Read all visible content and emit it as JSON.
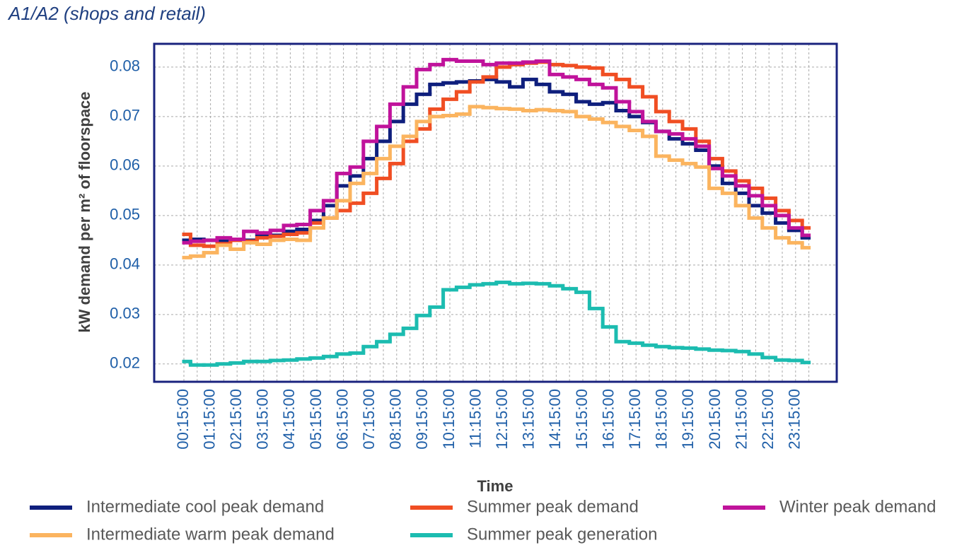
{
  "chart_data": {
    "type": "step-line",
    "title": "A1/A2 (shops and retail)",
    "x_label": "Time",
    "y_label": "kW demand per m² of floorspace",
    "categories": [
      "00:15:00",
      null,
      "01:15:00",
      null,
      "02:15:00",
      null,
      "03:15:00",
      null,
      "04:15:00",
      null,
      "05:15:00",
      null,
      "06:15:00",
      null,
      "07:15:00",
      null,
      "08:15:00",
      null,
      "09:15:00",
      null,
      "10:15:00",
      null,
      "11:15:00",
      null,
      "12:15:00",
      null,
      "13:15:00",
      null,
      "14:15:00",
      null,
      "15:15:00",
      null,
      "16:15:00",
      null,
      "17:15:00",
      null,
      "18:15:00",
      null,
      "19:15:00",
      null,
      "20:15:00",
      null,
      "21:15:00",
      null,
      "22:15:00",
      null,
      "23:15:00",
      null
    ],
    "ylim": [
      0.0164,
      0.0847
    ],
    "yticks": [
      0.02,
      0.03,
      0.04,
      0.05,
      0.06,
      0.07,
      0.08
    ],
    "grid": true,
    "legend": "bottom",
    "series": [
      {
        "name": "Intermediate cool peak demand",
        "color": "#0f1f7d",
        "values": [
          0.045,
          0.0452,
          0.045,
          0.0448,
          0.0452,
          0.045,
          0.0462,
          0.046,
          0.0468,
          0.0472,
          0.049,
          0.052,
          0.056,
          0.058,
          0.0615,
          0.065,
          0.069,
          0.0725,
          0.0745,
          0.0765,
          0.0768,
          0.077,
          0.0772,
          0.0775,
          0.077,
          0.076,
          0.0775,
          0.0765,
          0.075,
          0.0745,
          0.073,
          0.0725,
          0.0728,
          0.0712,
          0.07,
          0.0688,
          0.067,
          0.0655,
          0.0645,
          0.0632,
          0.06,
          0.0565,
          0.0545,
          0.052,
          0.0505,
          0.0485,
          0.047,
          0.0455
        ]
      },
      {
        "name": "Summer peak demand",
        "color": "#f04e23",
        "values": [
          0.0462,
          0.044,
          0.0438,
          0.0443,
          0.045,
          0.0448,
          0.0455,
          0.0458,
          0.0462,
          0.0465,
          0.0485,
          0.0495,
          0.051,
          0.0525,
          0.0545,
          0.0575,
          0.0605,
          0.065,
          0.0675,
          0.0715,
          0.0735,
          0.075,
          0.077,
          0.078,
          0.08,
          0.0805,
          0.0808,
          0.081,
          0.0805,
          0.0803,
          0.08,
          0.0798,
          0.0785,
          0.0775,
          0.076,
          0.074,
          0.071,
          0.069,
          0.0675,
          0.065,
          0.0615,
          0.059,
          0.057,
          0.0555,
          0.0535,
          0.051,
          0.049,
          0.0475
        ]
      },
      {
        "name": "Winter peak demand",
        "color": "#c0139b",
        "values": [
          0.0445,
          0.0448,
          0.045,
          0.0455,
          0.0452,
          0.0468,
          0.0465,
          0.047,
          0.048,
          0.0482,
          0.051,
          0.053,
          0.0585,
          0.0598,
          0.065,
          0.068,
          0.0725,
          0.076,
          0.0795,
          0.0805,
          0.0815,
          0.0812,
          0.0812,
          0.0805,
          0.0808,
          0.0808,
          0.081,
          0.0812,
          0.0785,
          0.078,
          0.0775,
          0.0765,
          0.0758,
          0.073,
          0.071,
          0.069,
          0.067,
          0.0665,
          0.0655,
          0.064,
          0.0595,
          0.058,
          0.056,
          0.054,
          0.052,
          0.05,
          0.0475,
          0.046
        ]
      },
      {
        "name": "Intermediate warm peak demand",
        "color": "#fbb45f",
        "values": [
          0.0415,
          0.0418,
          0.0425,
          0.044,
          0.0432,
          0.0445,
          0.0442,
          0.045,
          0.0452,
          0.045,
          0.0475,
          0.0495,
          0.053,
          0.0565,
          0.0585,
          0.0615,
          0.064,
          0.066,
          0.069,
          0.07,
          0.0702,
          0.0705,
          0.072,
          0.0718,
          0.0716,
          0.0715,
          0.0712,
          0.0714,
          0.0712,
          0.071,
          0.07,
          0.0695,
          0.0688,
          0.068,
          0.0672,
          0.066,
          0.062,
          0.0612,
          0.0605,
          0.0598,
          0.0555,
          0.0545,
          0.052,
          0.0495,
          0.0475,
          0.0455,
          0.0445,
          0.0435
        ]
      },
      {
        "name": "Summer peak generation",
        "color": "#1cbcb0",
        "values": [
          0.0205,
          0.0198,
          0.0198,
          0.02,
          0.0202,
          0.0205,
          0.0205,
          0.0207,
          0.0208,
          0.021,
          0.0212,
          0.0215,
          0.022,
          0.0222,
          0.0235,
          0.0245,
          0.026,
          0.0272,
          0.0298,
          0.0315,
          0.035,
          0.0355,
          0.036,
          0.0362,
          0.0365,
          0.0362,
          0.0363,
          0.0362,
          0.0358,
          0.0352,
          0.0345,
          0.0312,
          0.0275,
          0.0245,
          0.0242,
          0.0238,
          0.0235,
          0.0233,
          0.0232,
          0.023,
          0.0228,
          0.0227,
          0.0225,
          0.022,
          0.0213,
          0.0208,
          0.0207,
          0.0203
        ]
      }
    ]
  }
}
